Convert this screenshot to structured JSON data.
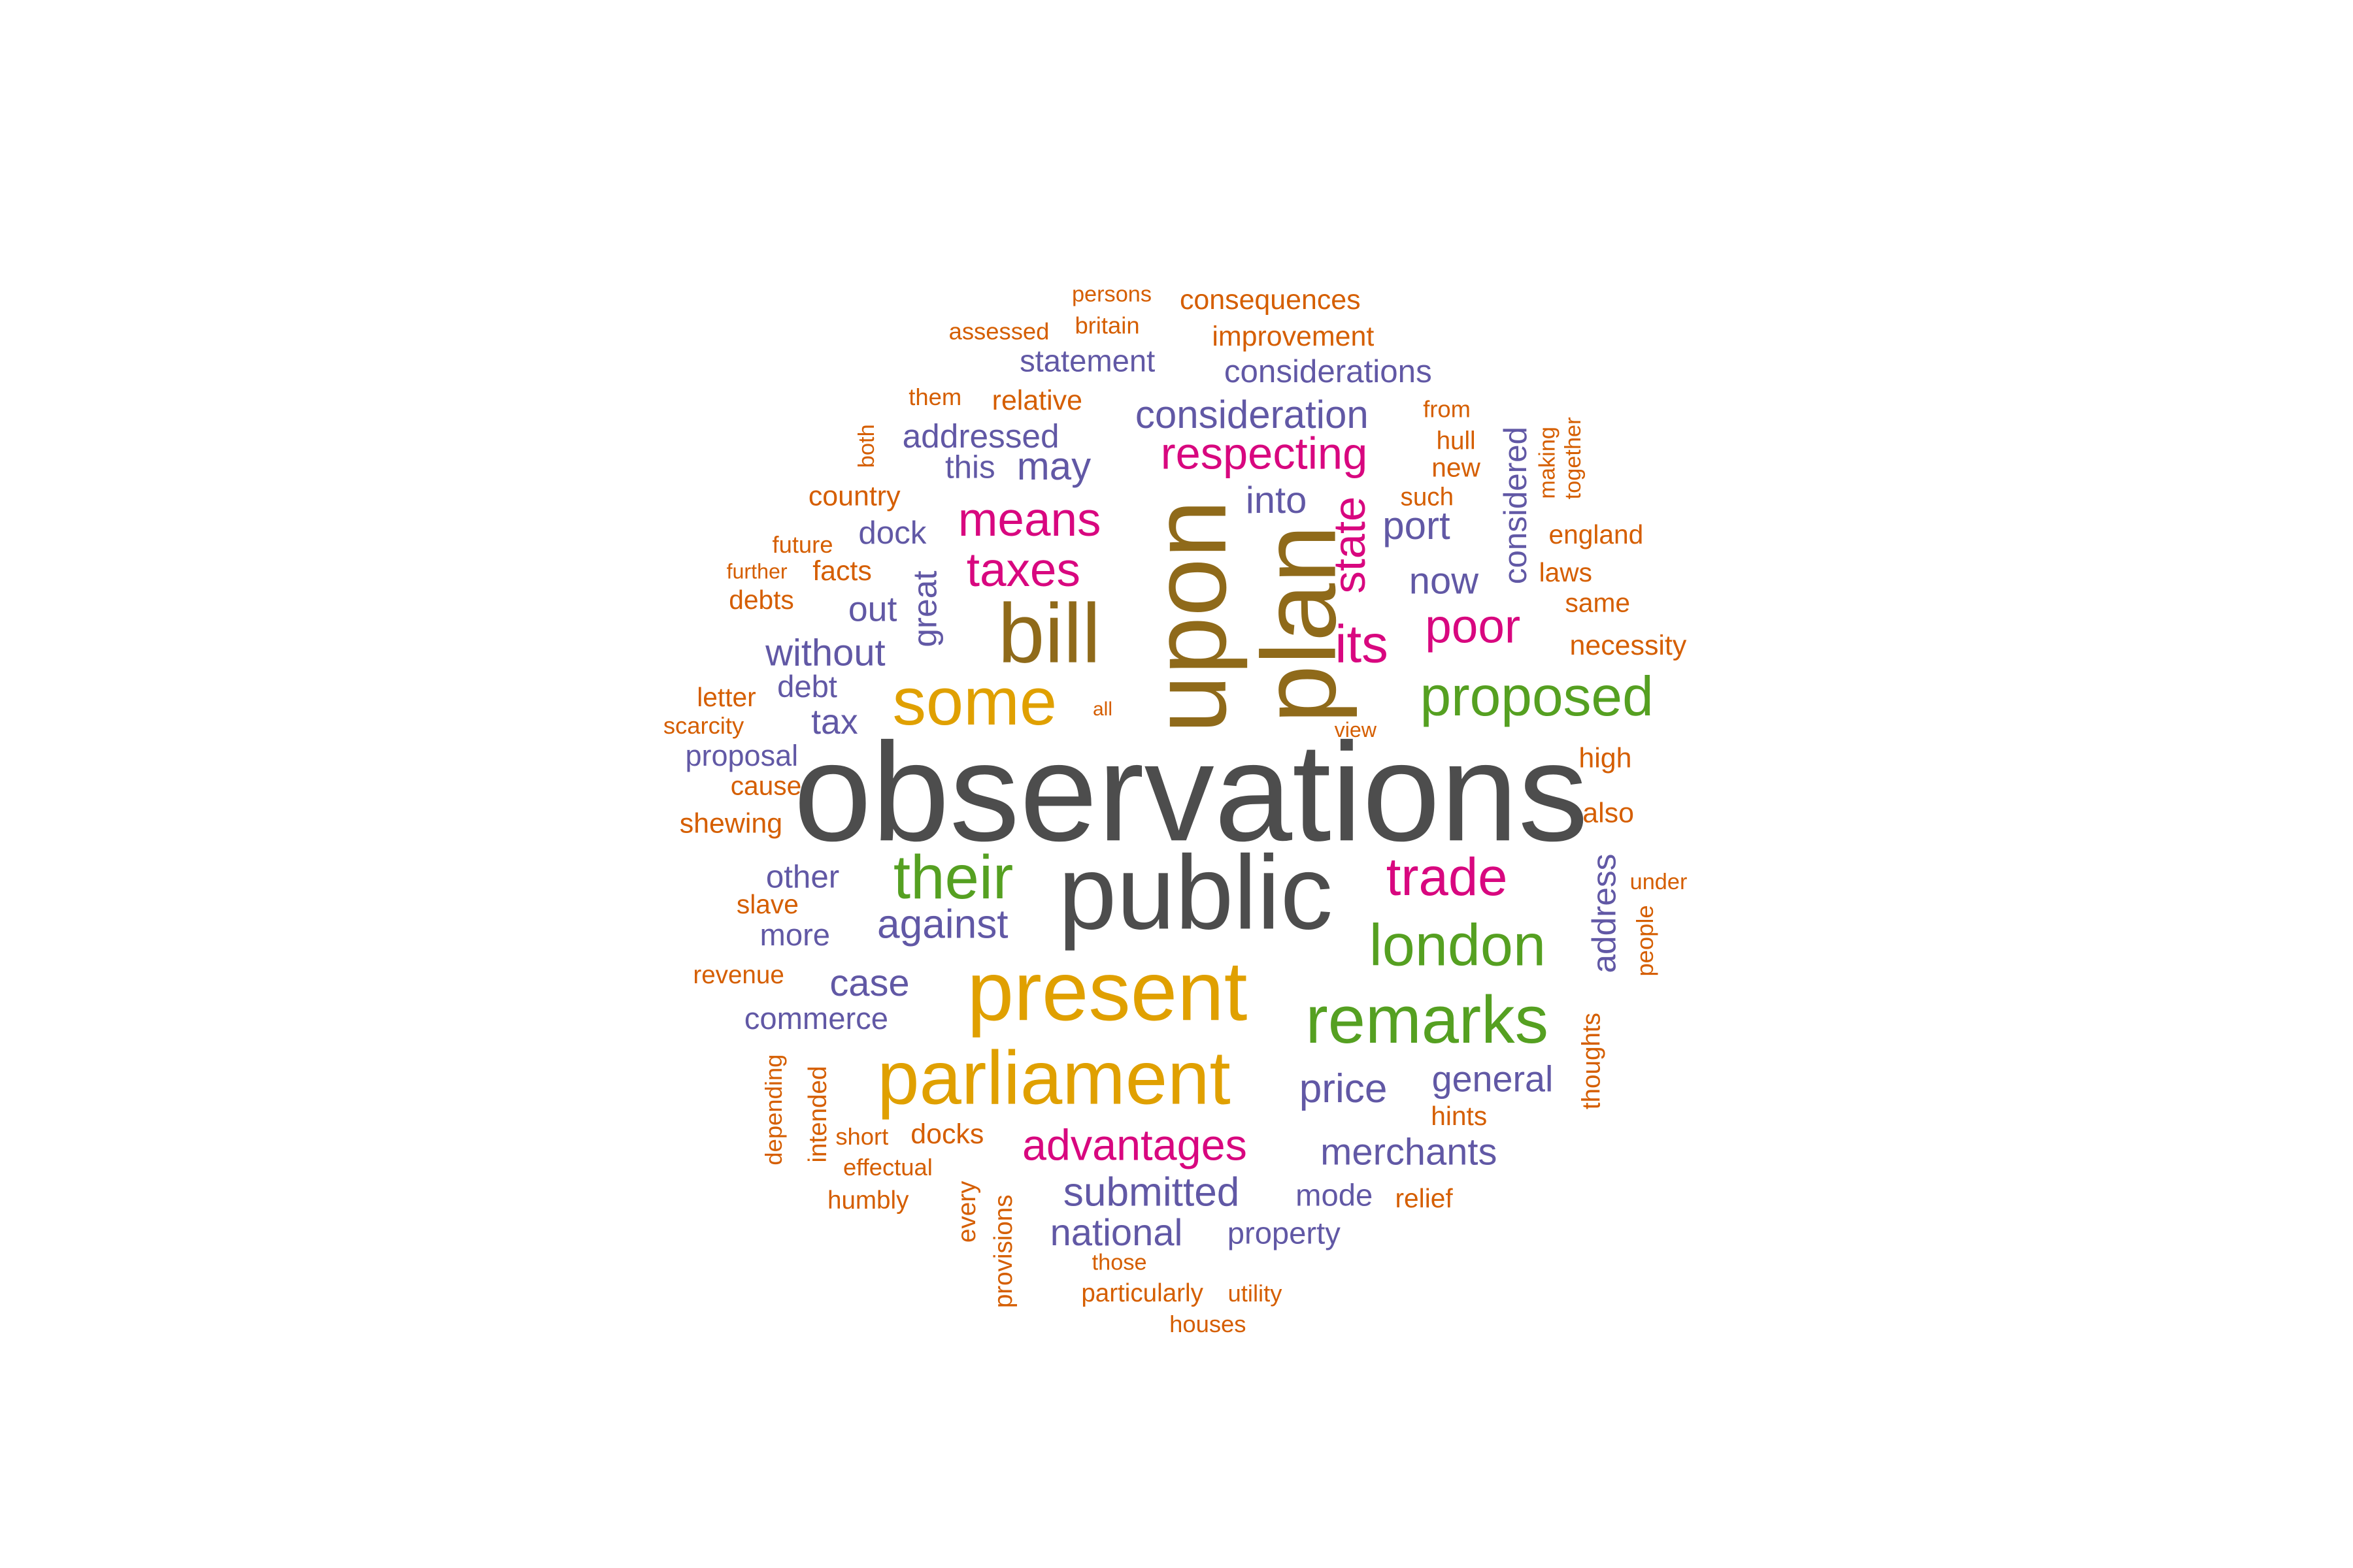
{
  "palette": {
    "gray": "#4d4d4d",
    "brown": "#8f6a1a",
    "gold": "#e0a000",
    "green": "#55a021",
    "magenta": "#d8077f",
    "purple": "#6158a5",
    "orange": "#d55e00"
  },
  "words": [
    {
      "text": "observations",
      "color": "gray"
    },
    {
      "text": "public",
      "color": "gray"
    },
    {
      "text": "upon",
      "color": "brown"
    },
    {
      "text": "plan",
      "color": "brown"
    },
    {
      "text": "bill",
      "color": "brown"
    },
    {
      "text": "present",
      "color": "gold"
    },
    {
      "text": "parliament",
      "color": "gold"
    },
    {
      "text": "some",
      "color": "gold"
    },
    {
      "text": "remarks",
      "color": "green"
    },
    {
      "text": "london",
      "color": "green"
    },
    {
      "text": "proposed",
      "color": "green"
    },
    {
      "text": "their",
      "color": "green"
    },
    {
      "text": "trade",
      "color": "magenta"
    },
    {
      "text": "advantages",
      "color": "magenta"
    },
    {
      "text": "poor",
      "color": "magenta"
    },
    {
      "text": "its",
      "color": "magenta"
    },
    {
      "text": "means",
      "color": "magenta"
    },
    {
      "text": "taxes",
      "color": "magenta"
    },
    {
      "text": "respecting",
      "color": "magenta"
    },
    {
      "text": "state",
      "color": "magenta"
    },
    {
      "text": "submitted",
      "color": "purple"
    },
    {
      "text": "merchants",
      "color": "purple"
    },
    {
      "text": "price",
      "color": "purple"
    },
    {
      "text": "against",
      "color": "purple"
    },
    {
      "text": "general",
      "color": "purple"
    },
    {
      "text": "consideration",
      "color": "purple"
    },
    {
      "text": "national",
      "color": "purple"
    },
    {
      "text": "address",
      "color": "purple"
    },
    {
      "text": "case",
      "color": "purple"
    },
    {
      "text": "without",
      "color": "purple"
    },
    {
      "text": "now",
      "color": "purple"
    },
    {
      "text": "port",
      "color": "purple"
    },
    {
      "text": "may",
      "color": "purple"
    },
    {
      "text": "into",
      "color": "purple"
    },
    {
      "text": "considered",
      "color": "purple"
    },
    {
      "text": "great",
      "color": "purple"
    },
    {
      "text": "commerce",
      "color": "purple"
    },
    {
      "text": "addressed",
      "color": "purple"
    },
    {
      "text": "considerations",
      "color": "purple"
    },
    {
      "text": "statement",
      "color": "purple"
    },
    {
      "text": "other",
      "color": "purple"
    },
    {
      "text": "more",
      "color": "purple"
    },
    {
      "text": "mode",
      "color": "purple"
    },
    {
      "text": "property",
      "color": "purple"
    },
    {
      "text": "tax",
      "color": "purple"
    },
    {
      "text": "out",
      "color": "purple"
    },
    {
      "text": "dock",
      "color": "purple"
    },
    {
      "text": "this",
      "color": "purple"
    },
    {
      "text": "debt",
      "color": "purple"
    },
    {
      "text": "proposal",
      "color": "purple"
    },
    {
      "text": "consequences",
      "color": "orange"
    },
    {
      "text": "improvement",
      "color": "orange"
    },
    {
      "text": "relative",
      "color": "orange"
    },
    {
      "text": "country",
      "color": "orange"
    },
    {
      "text": "facts",
      "color": "orange"
    },
    {
      "text": "debts",
      "color": "orange"
    },
    {
      "text": "necessity",
      "color": "orange"
    },
    {
      "text": "england",
      "color": "orange"
    },
    {
      "text": "laws",
      "color": "orange"
    },
    {
      "text": "same",
      "color": "orange"
    },
    {
      "text": "high",
      "color": "orange"
    },
    {
      "text": "also",
      "color": "orange"
    },
    {
      "text": "shewing",
      "color": "orange"
    },
    {
      "text": "cause",
      "color": "orange"
    },
    {
      "text": "letter",
      "color": "orange"
    },
    {
      "text": "scarcity",
      "color": "orange"
    },
    {
      "text": "slave",
      "color": "orange"
    },
    {
      "text": "revenue",
      "color": "orange"
    },
    {
      "text": "docks",
      "color": "orange"
    },
    {
      "text": "hints",
      "color": "orange"
    },
    {
      "text": "relief",
      "color": "orange"
    },
    {
      "text": "effectual",
      "color": "orange"
    },
    {
      "text": "humbly",
      "color": "orange"
    },
    {
      "text": "short",
      "color": "orange"
    },
    {
      "text": "those",
      "color": "orange"
    },
    {
      "text": "particularly",
      "color": "orange"
    },
    {
      "text": "utility",
      "color": "orange"
    },
    {
      "text": "houses",
      "color": "orange"
    },
    {
      "text": "persons",
      "color": "orange"
    },
    {
      "text": "britain",
      "color": "orange"
    },
    {
      "text": "assessed",
      "color": "orange"
    },
    {
      "text": "them",
      "color": "orange"
    },
    {
      "text": "from",
      "color": "orange"
    },
    {
      "text": "hull",
      "color": "orange"
    },
    {
      "text": "new",
      "color": "orange"
    },
    {
      "text": "such",
      "color": "orange"
    },
    {
      "text": "future",
      "color": "orange"
    },
    {
      "text": "further",
      "color": "orange"
    },
    {
      "text": "all",
      "color": "orange"
    },
    {
      "text": "view",
      "color": "orange"
    },
    {
      "text": "under",
      "color": "orange"
    },
    {
      "text": "people",
      "color": "orange"
    },
    {
      "text": "thoughts",
      "color": "orange"
    },
    {
      "text": "both",
      "color": "orange"
    },
    {
      "text": "making",
      "color": "orange"
    },
    {
      "text": "together",
      "color": "orange"
    },
    {
      "text": "depending",
      "color": "orange"
    },
    {
      "text": "intended",
      "color": "orange"
    },
    {
      "text": "every",
      "color": "orange"
    },
    {
      "text": "provisions",
      "color": "orange"
    }
  ]
}
